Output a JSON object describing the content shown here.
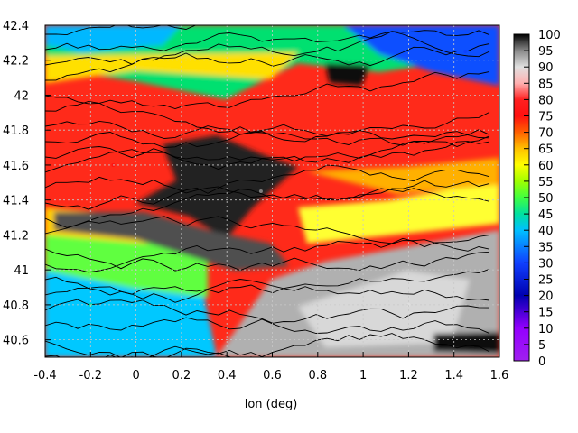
{
  "chart_data": {
    "type": "heatmap",
    "title": "",
    "xlabel": "lon (deg)",
    "ylabel": "",
    "xlim": [
      -0.4,
      1.6
    ],
    "ylim": [
      40.5,
      42.4
    ],
    "grid": true,
    "x_ticks": [
      "-0.4",
      "-0.2",
      "0",
      "0.2",
      "0.4",
      "0.6",
      "0.8",
      "1",
      "1.2",
      "1.4",
      "1.6"
    ],
    "y_ticks": [
      "40.6",
      "40.8",
      "41",
      "41.2",
      "41.4",
      "41.6",
      "41.8",
      "42",
      "42.2",
      "42.4"
    ],
    "colorbar": {
      "range": [
        0,
        100
      ],
      "ticks": [
        "0",
        "5",
        "10",
        "15",
        "20",
        "25",
        "30",
        "35",
        "40",
        "45",
        "50",
        "55",
        "60",
        "65",
        "70",
        "75",
        "80",
        "85",
        "90",
        "95",
        "100"
      ],
      "stops": [
        {
          "value": 0,
          "color": "#a020f0"
        },
        {
          "value": 10,
          "color": "#9400ff"
        },
        {
          "value": 20,
          "color": "#0000b0"
        },
        {
          "value": 30,
          "color": "#1040ff"
        },
        {
          "value": 40,
          "color": "#00c0ff"
        },
        {
          "value": 45,
          "color": "#00e0a0"
        },
        {
          "value": 50,
          "color": "#40ff40"
        },
        {
          "value": 55,
          "color": "#a0ff00"
        },
        {
          "value": 60,
          "color": "#ffff00"
        },
        {
          "value": 65,
          "color": "#ffc000"
        },
        {
          "value": 70,
          "color": "#ff6000"
        },
        {
          "value": 75,
          "color": "#ff1010"
        },
        {
          "value": 80,
          "color": "#ff2020"
        },
        {
          "value": 85,
          "color": "#ffb0b0"
        },
        {
          "value": 90,
          "color": "#e0e0e0"
        },
        {
          "value": 95,
          "color": "#888888"
        },
        {
          "value": 100,
          "color": "#000000"
        }
      ]
    },
    "regions": [
      {
        "label": "central-low-value-zone",
        "lon": 0.55,
        "lat": 41.45,
        "value": 95
      },
      {
        "label": "southeast-grey-zone",
        "lon": 1.2,
        "lat": 40.8,
        "value": 92
      },
      {
        "label": "northeast-blue-zone",
        "lon": 1.45,
        "lat": 42.25,
        "value": 28
      },
      {
        "label": "west-red-zone",
        "lon": -0.1,
        "lat": 41.6,
        "value": 76
      },
      {
        "label": "southwest-cyan-zone",
        "lon": -0.2,
        "lat": 40.8,
        "value": 45
      }
    ]
  }
}
